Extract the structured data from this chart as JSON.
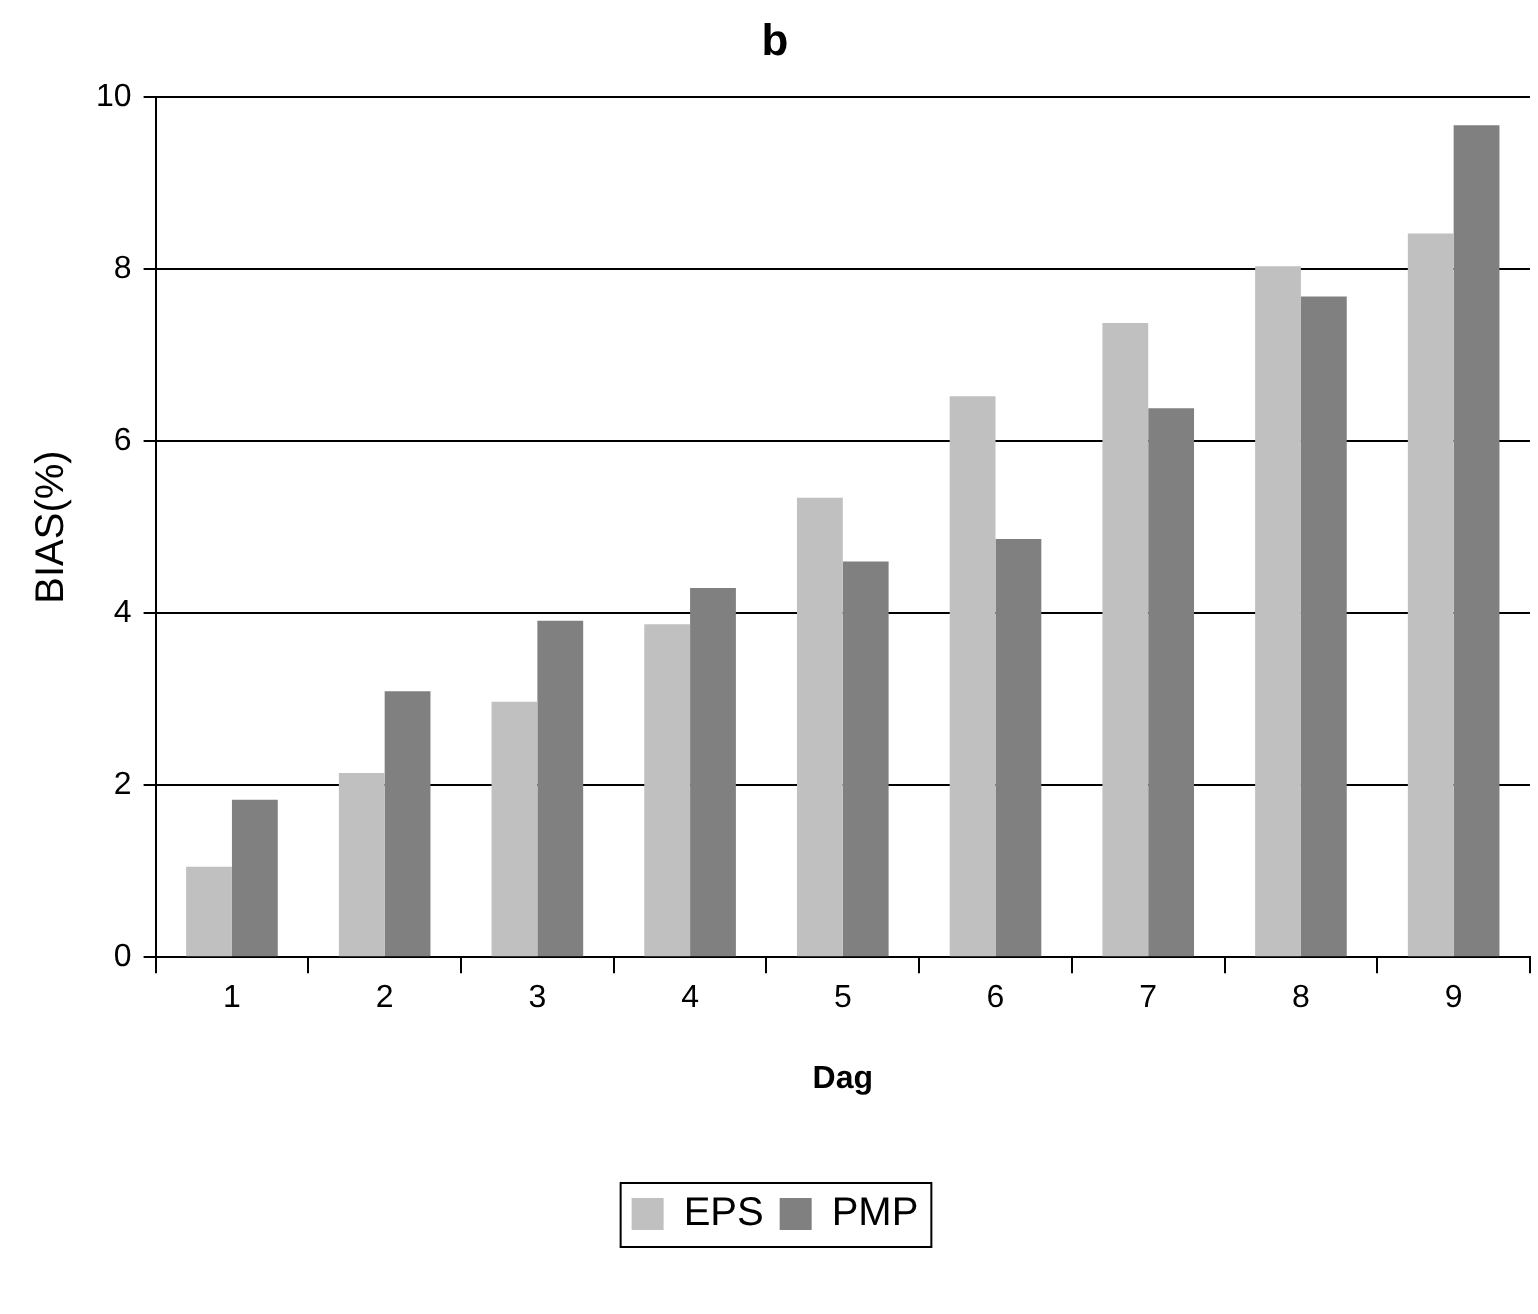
{
  "chart_data": {
    "type": "bar",
    "title": "b",
    "xlabel": "Dag",
    "ylabel": "BIAS(%)",
    "categories": [
      "1",
      "2",
      "3",
      "4",
      "5",
      "6",
      "7",
      "8",
      "9"
    ],
    "series": [
      {
        "name": "EPS",
        "color": "#c0c0c0",
        "values": [
          1.05,
          2.14,
          2.97,
          3.87,
          5.34,
          6.52,
          7.37,
          8.03,
          8.41
        ]
      },
      {
        "name": "PMP",
        "color": "#808080",
        "values": [
          1.83,
          3.09,
          3.91,
          4.29,
          4.6,
          4.86,
          6.38,
          7.68,
          9.67
        ]
      }
    ],
    "ylim": [
      0,
      10
    ],
    "yticks": [
      0,
      2,
      4,
      6,
      8,
      10
    ],
    "grid": "y",
    "legend": "bottom"
  }
}
